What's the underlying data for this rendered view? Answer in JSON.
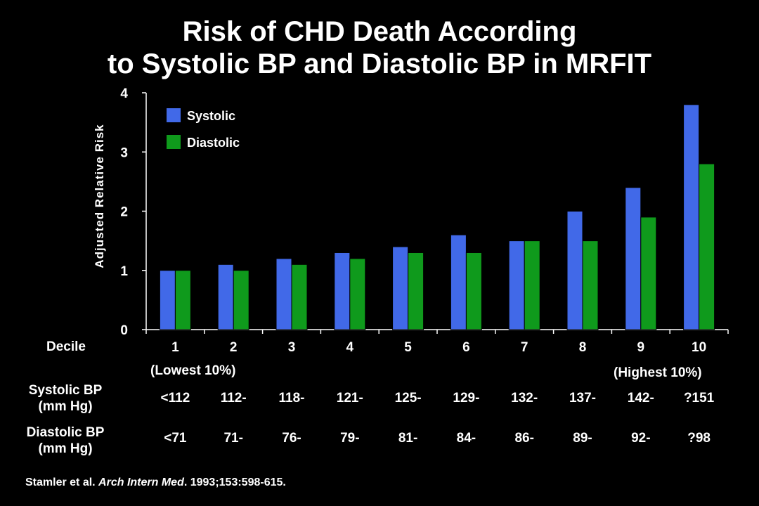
{
  "title_line1": "Risk of CHD Death According",
  "title_line2": "to Systolic BP and Diastolic BP in MRFIT",
  "chart_data": {
    "type": "bar",
    "title": "Risk of CHD Death According to Systolic BP and Diastolic BP in MRFIT",
    "ylabel": "Adjusted Relative Risk",
    "xlabel": "Decile",
    "categories": [
      "1",
      "2",
      "3",
      "4",
      "5",
      "6",
      "7",
      "8",
      "9",
      "10"
    ],
    "series": [
      {
        "name": "Systolic",
        "color": "#4169e8",
        "values": [
          1.0,
          1.1,
          1.2,
          1.3,
          1.4,
          1.6,
          1.5,
          2.0,
          2.4,
          3.8
        ]
      },
      {
        "name": "Diastolic",
        "color": "#0f9a1c",
        "values": [
          1.0,
          1.0,
          1.1,
          1.2,
          1.3,
          1.3,
          1.5,
          1.5,
          1.9,
          2.8
        ]
      }
    ],
    "ylim": [
      0,
      4
    ],
    "yticks": [
      "0",
      "1",
      "2",
      "3",
      "4"
    ],
    "grid": false,
    "legend_position": "top-left"
  },
  "decile_label": "Decile",
  "lowest_note": "(Lowest 10%)",
  "highest_note": "(Highest 10%)",
  "systolic_row": {
    "label_line1": "Systolic BP",
    "label_line2": "(mm Hg)",
    "values": [
      "<112",
      "112-",
      "118-",
      "121-",
      "125-",
      "129-",
      "132-",
      "137-",
      "142-",
      "?151"
    ]
  },
  "diastolic_row": {
    "label_line1": "Diastolic BP",
    "label_line2": "(mm Hg)",
    "values": [
      "<71",
      "71-",
      "76-",
      "79-",
      "81-",
      "84-",
      "86-",
      "89-",
      "92-",
      "?98"
    ]
  },
  "citation": {
    "authors": "Stamler et al. ",
    "journal": "Arch Intern Med",
    "rest": ". 1993;153:598-615."
  }
}
